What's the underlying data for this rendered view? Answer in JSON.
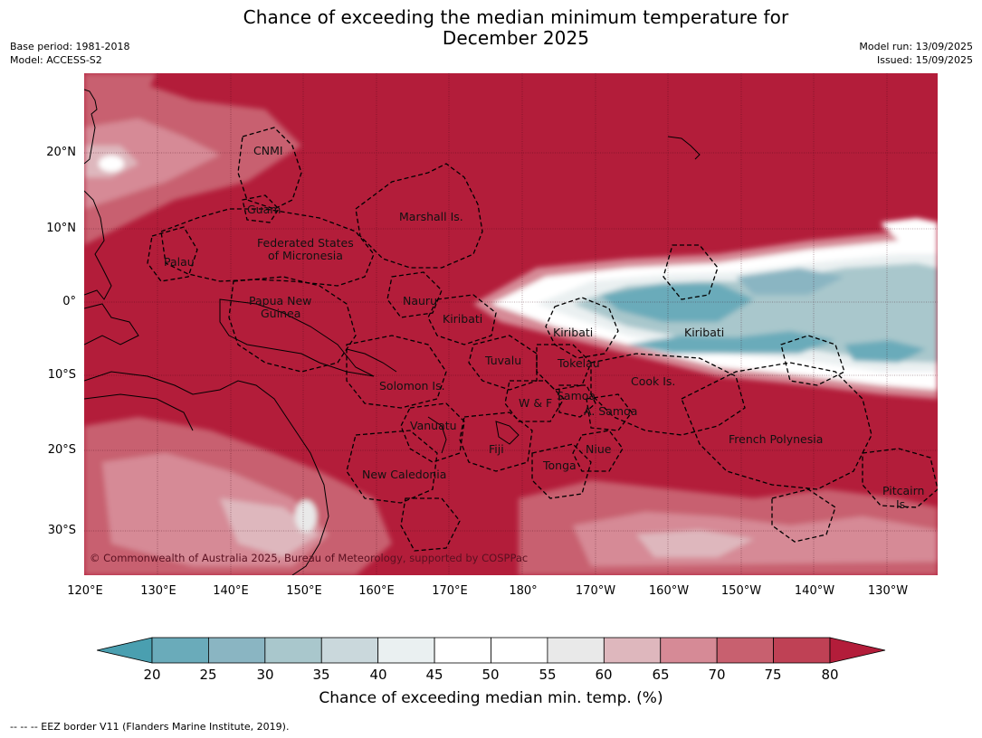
{
  "title_line1": "Chance of exceeding the median minimum temperature for",
  "title_line2": "December 2025",
  "meta": {
    "base_period": "Base period: 1981-2018",
    "model": "Model: ACCESS-S2",
    "model_run": "Model run: 13/09/2025",
    "issued": "Issued: 15/09/2025"
  },
  "lat_ticks": [
    "20°N",
    "10°N",
    "0°",
    "10°S",
    "20°S",
    "30°S"
  ],
  "lon_ticks": [
    "120°E",
    "130°E",
    "140°E",
    "150°E",
    "160°E",
    "170°E",
    "180°",
    "170°W",
    "160°W",
    "150°W",
    "140°W",
    "130°W"
  ],
  "region_labels": {
    "cnmi": "CNMI",
    "guam": "Guam",
    "marshall": "Marshall Is.",
    "fsm_1": "Federated States",
    "fsm_2": "of Micronesia",
    "palau": "Palau",
    "png_1": "Papua New",
    "png_2": "Guinea",
    "nauru": "Nauru",
    "kiribati_w": "Kiribati",
    "kiribati_c": "Kiribati",
    "kiribati_e": "Kiribati",
    "tuvalu": "Tuvalu",
    "tokelau": "Tokelau",
    "cook": "Cook Is.",
    "solomon": "Solomon Is.",
    "wf": "W & F",
    "samoa": "Samoa",
    "asamoa": "A. Samoa",
    "vanuatu": "Vanuatu",
    "fiji": "Fiji",
    "niue": "Niue",
    "tonga": "Tonga",
    "french_polynesia": "French Polynesia",
    "pitcairn_1": "Pitcairn",
    "pitcairn_2": "Is.",
    "new_caledonia": "New Caledonia"
  },
  "copyright": "© Commonwealth of Australia 2025, Bureau of Meteorology, supported by COSPPac",
  "colorbar": {
    "ticks": [
      "20",
      "25",
      "30",
      "35",
      "40",
      "45",
      "50",
      "55",
      "60",
      "65",
      "70",
      "75",
      "80"
    ],
    "colors": [
      "#4a9fb0",
      "#6aabba",
      "#8ab5c2",
      "#a9c7cc",
      "#cad8dc",
      "#eaf0f1",
      "#ffffff",
      "#ffffff",
      "#e9e9e9",
      "#deb7bd",
      "#d68a96",
      "#c8606f",
      "#bf4155",
      "#b31d3a"
    ],
    "label": "Chance of exceeding median min. temp. (%)"
  },
  "footnote": "--  --  -- EEZ border V11 (Flanders Marine Institute, 2019)."
}
